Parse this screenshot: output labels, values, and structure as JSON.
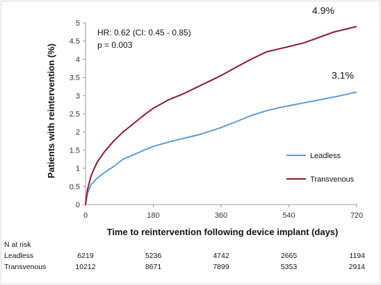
{
  "chart_data": {
    "type": "line",
    "xlabel": "Time to reintervention following device implant (days)",
    "ylabel": "Patients with reintervention (%)",
    "xlim": [
      0,
      720
    ],
    "ylim": [
      0,
      5
    ],
    "x_ticks": [
      0,
      180,
      360,
      540,
      720
    ],
    "y_ticks": [
      0,
      0.5,
      1,
      1.5,
      2,
      2.5,
      3,
      3.5,
      4,
      4.5,
      5
    ],
    "grid": false,
    "legend_position": "center-right",
    "annotations": {
      "hr": "HR: 0.62 (CI: 0.45 - 0.85)",
      "p": "p = 0.003"
    },
    "series": [
      {
        "name": "Leadless",
        "color": "#5b9bd5",
        "end_label": "3.1%",
        "points": [
          [
            0,
            0
          ],
          [
            5,
            0.3
          ],
          [
            15,
            0.55
          ],
          [
            30,
            0.72
          ],
          [
            50,
            0.88
          ],
          [
            75,
            1.05
          ],
          [
            100,
            1.25
          ],
          [
            130,
            1.38
          ],
          [
            160,
            1.52
          ],
          [
            180,
            1.6
          ],
          [
            220,
            1.72
          ],
          [
            260,
            1.82
          ],
          [
            300,
            1.92
          ],
          [
            340,
            2.05
          ],
          [
            360,
            2.12
          ],
          [
            400,
            2.28
          ],
          [
            440,
            2.45
          ],
          [
            480,
            2.58
          ],
          [
            520,
            2.68
          ],
          [
            540,
            2.72
          ],
          [
            580,
            2.8
          ],
          [
            620,
            2.88
          ],
          [
            660,
            2.96
          ],
          [
            700,
            3.05
          ],
          [
            720,
            3.1
          ]
        ]
      },
      {
        "name": "Transvenous",
        "color": "#8b1a2b",
        "end_label": "4.9%",
        "points": [
          [
            0,
            0
          ],
          [
            5,
            0.4
          ],
          [
            15,
            0.8
          ],
          [
            30,
            1.15
          ],
          [
            50,
            1.45
          ],
          [
            75,
            1.75
          ],
          [
            100,
            2.0
          ],
          [
            130,
            2.25
          ],
          [
            160,
            2.5
          ],
          [
            180,
            2.65
          ],
          [
            220,
            2.88
          ],
          [
            260,
            3.05
          ],
          [
            300,
            3.25
          ],
          [
            340,
            3.45
          ],
          [
            360,
            3.55
          ],
          [
            400,
            3.78
          ],
          [
            440,
            4.0
          ],
          [
            480,
            4.2
          ],
          [
            520,
            4.3
          ],
          [
            540,
            4.35
          ],
          [
            580,
            4.45
          ],
          [
            620,
            4.6
          ],
          [
            660,
            4.75
          ],
          [
            700,
            4.85
          ],
          [
            720,
            4.9
          ]
        ]
      }
    ]
  },
  "risk_table": {
    "title": "N at risk",
    "rows": [
      {
        "label": "Leadless",
        "values": [
          "6219",
          "5236",
          "4742",
          "2665",
          "1194"
        ]
      },
      {
        "label": "Transvenous",
        "values": [
          "10212",
          "8671",
          "7899",
          "5353",
          "2914"
        ]
      }
    ]
  }
}
